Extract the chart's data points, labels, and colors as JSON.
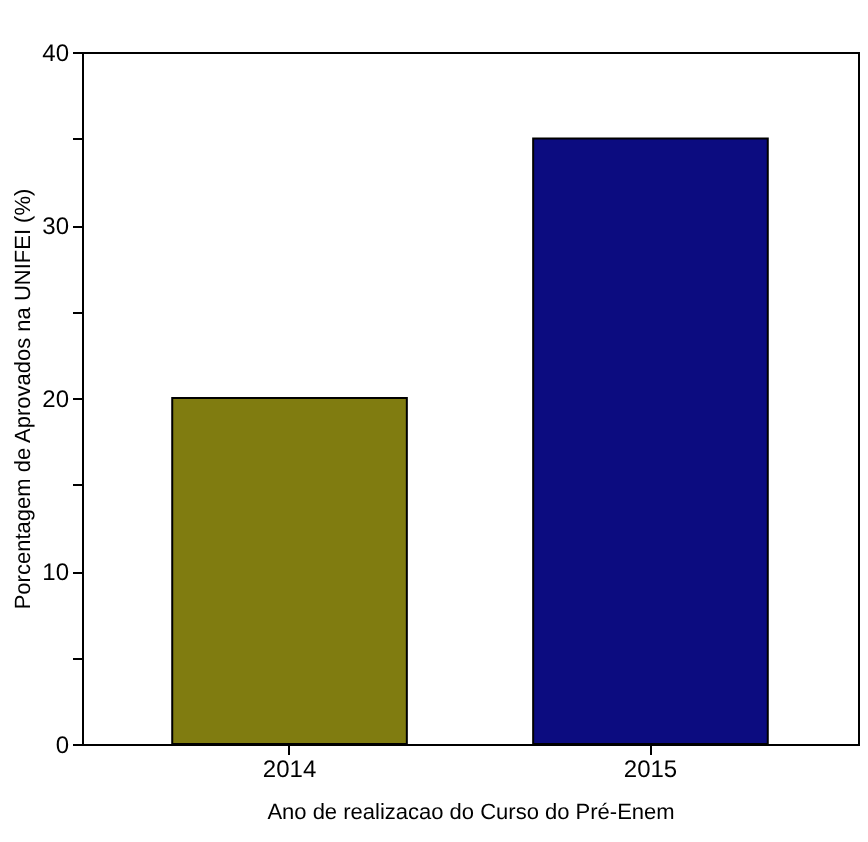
{
  "chart_data": {
    "type": "bar",
    "categories": [
      "2014",
      "2015"
    ],
    "values": [
      20,
      35
    ],
    "colors": [
      "#807c10",
      "#0c0c80"
    ],
    "xlabel": "Ano de realizacao do Curso do Pré-Enem",
    "ylabel": "Porcentagem de Aprovados na UNIFEI (%)",
    "ylim": [
      0,
      40
    ],
    "yticks": [
      0,
      {
        "value": 5,
        "label": null
      },
      10,
      {
        "value": 15,
        "label": null
      },
      20,
      {
        "value": 25,
        "label": null
      },
      30,
      {
        "value": 35,
        "label": null
      },
      40
    ],
    "grid": false,
    "legend": false
  }
}
